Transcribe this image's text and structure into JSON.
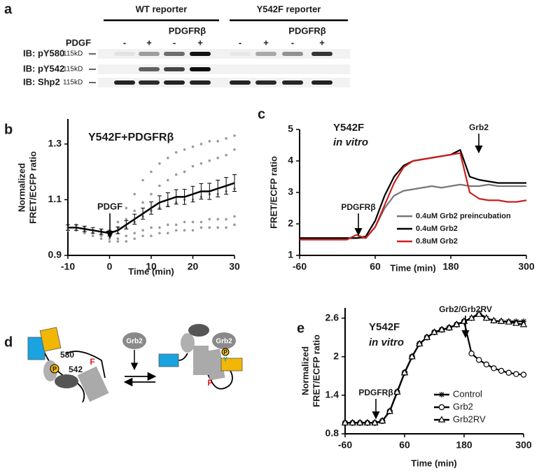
{
  "panel_labels": [
    "a",
    "b",
    "c",
    "d",
    "e"
  ],
  "blot": {
    "groups": [
      "WT reporter",
      "Y542F reporter"
    ],
    "treatment": "PDGF",
    "lanes": [
      "-",
      "+",
      "-",
      "+",
      "-",
      "+",
      "-",
      "+"
    ],
    "cotransfected": [
      "PDGFRβ",
      "PDGFRβ"
    ],
    "rows": [
      {
        "antibody": "IB: pY580",
        "size": "115kD"
      },
      {
        "antibody": "IB: pY542",
        "size": "115kD"
      },
      {
        "antibody": "IB: Shp2",
        "size": "115kD"
      }
    ]
  },
  "diagram": {
    "left": {
      "site_a": "580",
      "site_b": "542",
      "mutation": "F",
      "phospho": "P"
    },
    "adaptor": "Grb2",
    "right": {
      "adaptor": "Grb2",
      "mutation": "F",
      "phospho": "P",
      "residue": "Y"
    }
  },
  "chart_data": [
    {
      "type": "line",
      "xlabel": "Time (min)",
      "ylabel": [
        "Normalized",
        "FRET/ECFP ratio"
      ],
      "annotations": [
        "Y542F+PDGFRβ",
        "PDGF"
      ],
      "x": [
        -10,
        -8,
        -6,
        -4,
        -2,
        0,
        2,
        4,
        6,
        8,
        10,
        12,
        14,
        16,
        18,
        20,
        22,
        24,
        26,
        28,
        30
      ],
      "xlim": [
        -10,
        30
      ],
      "xticks": [
        -10,
        0,
        10,
        20,
        30
      ],
      "ylim": [
        0.9,
        1.39
      ],
      "yticks": [
        0.9,
        1.1,
        1.3
      ],
      "series": [
        {
          "color": "#9a9a9a",
          "marker": "dot",
          "line": false,
          "values": [
            1.0,
            1.01,
            1.0,
            0.99,
            0.98,
            0.98,
            1.02,
            1.07,
            1.12,
            1.17,
            1.2,
            1.23,
            1.25,
            1.27,
            1.28,
            1.29,
            1.3,
            1.31,
            1.31,
            1.32,
            1.33
          ]
        },
        {
          "color": "#9a9a9a",
          "marker": "dot",
          "line": false,
          "values": [
            1.0,
            0.99,
            1.0,
            0.99,
            0.99,
            0.98,
            1.0,
            1.03,
            1.06,
            1.09,
            1.12,
            1.15,
            1.17,
            1.19,
            1.2,
            1.22,
            1.23,
            1.24,
            1.25,
            1.26,
            1.28
          ]
        },
        {
          "color": "#9a9a9a",
          "marker": "dot",
          "line": false,
          "values": [
            1.0,
            1.0,
            0.99,
            0.98,
            0.98,
            0.97,
            0.98,
            1.0,
            1.02,
            1.04,
            1.06,
            1.07,
            1.08,
            1.09,
            1.1,
            1.1,
            1.11,
            1.12,
            1.12,
            1.13,
            1.14
          ]
        },
        {
          "color": "#9a9a9a",
          "marker": "dot",
          "line": false,
          "values": [
            1.0,
            0.99,
            0.99,
            0.98,
            0.97,
            0.96,
            0.96,
            0.97,
            0.98,
            0.99,
            1.0,
            1.0,
            1.01,
            1.01,
            1.02,
            1.02,
            1.02,
            1.03,
            1.03,
            1.03,
            1.04
          ]
        },
        {
          "color": "#9a9a9a",
          "marker": "dot",
          "line": false,
          "values": [
            0.99,
            0.99,
            0.98,
            0.97,
            0.96,
            0.95,
            0.95,
            0.95,
            0.96,
            0.97,
            0.97,
            0.98,
            0.98,
            0.99,
            0.99,
            0.99,
            1.0,
            1.0,
            1.0,
            1.0,
            1.01
          ]
        },
        {
          "color": "#000000",
          "marker": null,
          "line": true,
          "values": [
            1.0,
            1.0,
            0.995,
            0.99,
            0.985,
            0.98,
            0.99,
            1.01,
            1.03,
            1.05,
            1.07,
            1.09,
            1.1,
            1.11,
            1.11,
            1.12,
            1.13,
            1.13,
            1.14,
            1.15,
            1.16
          ],
          "errors": [
            0.01,
            0.01,
            0.01,
            0.01,
            0.01,
            0.01,
            0.012,
            0.015,
            0.018,
            0.02,
            0.022,
            0.024,
            0.025,
            0.026,
            0.027,
            0.028,
            0.028,
            0.029,
            0.03,
            0.03,
            0.03
          ]
        }
      ]
    },
    {
      "type": "line",
      "xlabel": "Time (min)",
      "ylabel": [
        "FRET/ECFP ratio"
      ],
      "annotations": [
        "Y542F",
        "in vitro",
        "PDGFRβ",
        "Grb2"
      ],
      "legend": "lower right",
      "x": [
        -60,
        -45,
        -30,
        -15,
        0,
        15,
        30,
        45,
        60,
        75,
        90,
        105,
        120,
        135,
        150,
        165,
        180,
        195,
        210,
        225,
        240,
        255,
        270,
        285,
        300
      ],
      "xlim": [
        -60,
        300
      ],
      "xticks": [
        -60,
        60,
        180,
        300
      ],
      "ylim": [
        1,
        5
      ],
      "yticks": [
        1,
        2,
        3,
        4,
        5
      ],
      "series": [
        {
          "name": "0.4uM Grb2 preincubation",
          "color": "#777777",
          "marker": null,
          "line": true,
          "values": [
            1.55,
            1.55,
            1.55,
            1.55,
            1.55,
            1.55,
            1.55,
            1.55,
            1.9,
            2.5,
            2.9,
            3.05,
            3.1,
            3.15,
            3.2,
            3.15,
            3.2,
            3.25,
            3.2,
            3.2,
            3.25,
            3.2,
            3.2,
            3.2,
            3.2
          ]
        },
        {
          "name": "0.4uM Grb2",
          "color": "#000000",
          "marker": null,
          "line": true,
          "values": [
            1.55,
            1.55,
            1.55,
            1.55,
            1.55,
            1.55,
            1.55,
            1.6,
            2.1,
            2.9,
            3.5,
            3.85,
            4.0,
            4.05,
            4.1,
            4.15,
            4.2,
            4.35,
            3.5,
            3.4,
            3.35,
            3.3,
            3.3,
            3.3,
            3.3
          ]
        },
        {
          "name": "0.8uM Grb2",
          "color": "#cc1f1f",
          "marker": null,
          "line": true,
          "values": [
            1.5,
            1.5,
            1.5,
            1.5,
            1.5,
            1.5,
            1.65,
            1.55,
            1.9,
            2.6,
            3.3,
            3.8,
            4.0,
            4.05,
            4.1,
            4.15,
            4.2,
            4.25,
            3.0,
            2.8,
            2.75,
            2.75,
            2.7,
            2.7,
            2.75
          ]
        }
      ]
    },
    {
      "type": "line",
      "xlabel": "Time (min)",
      "ylabel": [
        "Normalized",
        "FRET/ECFP ratio"
      ],
      "annotations": [
        "Y542F",
        "in vitro",
        "PDGFRβ",
        "Grb2/Grb2RV"
      ],
      "legend": "lower right",
      "x": [
        -60,
        -45,
        -30,
        -15,
        0,
        15,
        30,
        45,
        60,
        75,
        90,
        105,
        120,
        135,
        150,
        165,
        180,
        195,
        210,
        225,
        240,
        255,
        270,
        285,
        300
      ],
      "xlim": [
        -60,
        300
      ],
      "xticks": [
        -60,
        60,
        180,
        300
      ],
      "ylim": [
        0.8,
        2.76
      ],
      "yticks": [
        0.8,
        1.4,
        2,
        2.6
      ],
      "series": [
        {
          "name": "Control",
          "color": "#000000",
          "marker": "asterisk",
          "line": true,
          "values": [
            0.97,
            0.97,
            0.97,
            0.97,
            0.97,
            1.0,
            1.15,
            1.45,
            1.75,
            2.0,
            2.2,
            2.3,
            2.38,
            2.42,
            2.45,
            2.5,
            2.55,
            2.6,
            2.68,
            2.6,
            2.56,
            2.55,
            2.55,
            2.55,
            2.55
          ]
        },
        {
          "name": "Grb2",
          "color": "#000000",
          "marker": "circle",
          "line": true,
          "values": [
            0.97,
            0.97,
            0.97,
            0.97,
            0.97,
            1.0,
            1.15,
            1.45,
            1.75,
            2.0,
            2.2,
            2.3,
            2.38,
            2.42,
            2.45,
            2.5,
            2.55,
            2.05,
            1.95,
            1.88,
            1.82,
            1.78,
            1.75,
            1.73,
            1.72
          ]
        },
        {
          "name": "Grb2RV",
          "color": "#000000",
          "marker": "triangle",
          "line": true,
          "values": [
            0.97,
            0.97,
            0.97,
            0.97,
            0.97,
            1.0,
            1.15,
            1.45,
            1.75,
            2.0,
            2.2,
            2.3,
            2.38,
            2.42,
            2.45,
            2.5,
            2.55,
            2.6,
            2.66,
            2.6,
            2.56,
            2.55,
            2.54,
            2.52,
            2.5
          ]
        }
      ]
    }
  ]
}
